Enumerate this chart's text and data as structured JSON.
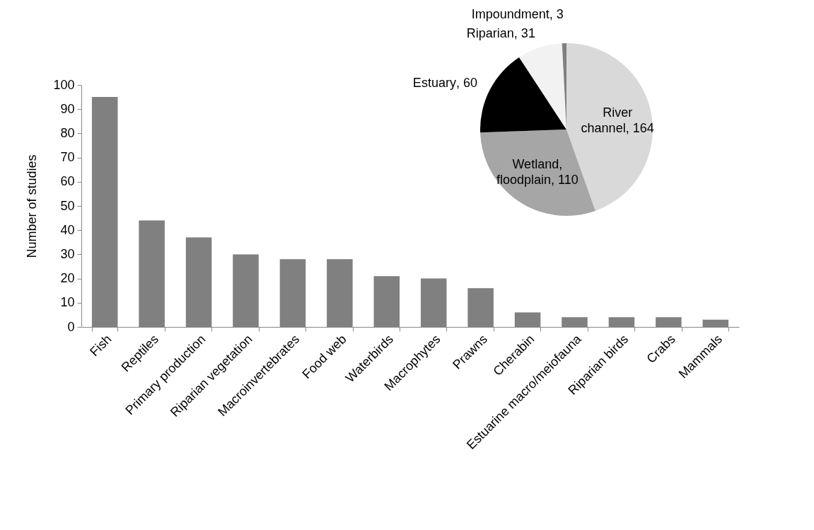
{
  "chart_data": [
    {
      "type": "bar",
      "ylabel": "Number of studies",
      "categories": [
        "Fish",
        "Reptiles",
        "Primary production",
        "Riparian vegetation",
        "Macroinvertebrates",
        "Food web",
        "Waterbirds",
        "Macrophytes",
        "Prawns",
        "Cherabin",
        "Estuarine macro/meiofauna",
        "Riparian birds",
        "Crabs",
        "Mammals"
      ],
      "values": [
        95,
        44,
        37,
        30,
        28,
        28,
        21,
        20,
        16,
        6,
        4,
        4,
        4,
        3
      ],
      "color": "#808080",
      "ylim": [
        0,
        100
      ],
      "yticks": [
        0,
        10,
        20,
        30,
        40,
        50,
        60,
        70,
        80,
        90,
        100
      ],
      "grid": false
    },
    {
      "type": "pie",
      "categories": [
        "River channel",
        "Wetland, floodplain",
        "Estuary",
        "Riparian",
        "Impoundment"
      ],
      "values": [
        164,
        110,
        60,
        31,
        3
      ],
      "colors": [
        "#d9d9d9",
        "#a6a6a6",
        "#000000",
        "#f2f2f2",
        "#808080"
      ],
      "value_labels": [
        ", 164",
        ", 110",
        ", 60",
        ", 31",
        ", 3"
      ]
    }
  ]
}
